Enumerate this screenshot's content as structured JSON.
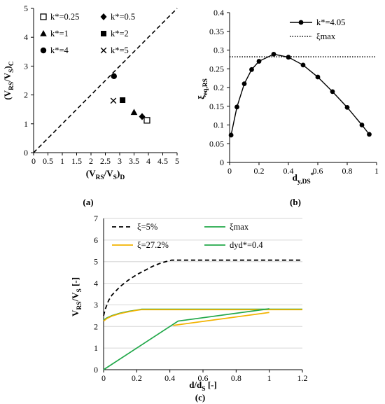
{
  "chart_data": [
    {
      "id": "a",
      "type": "scatter",
      "panel_label": "(a)",
      "xlabel": "(V_RS/V_S)_D",
      "ylabel": "(V_RS/V_S)_C",
      "xlim": [
        0,
        5
      ],
      "ylim": [
        0,
        5
      ],
      "x_ticks": [
        "0",
        "0.5",
        "1",
        "1.5",
        "2",
        "2.5",
        "3",
        "3.5",
        "4",
        "4.5",
        "5"
      ],
      "y_ticks": [
        "0",
        "1",
        "2",
        "3",
        "4",
        "5"
      ],
      "grid": false,
      "reference_line": {
        "style": "dashed",
        "x": [
          0,
          5
        ],
        "y": [
          0,
          5
        ]
      },
      "legend_position": "top-left",
      "series": [
        {
          "name": "k*=0.25",
          "marker": "open-square",
          "points": [
            [
              3.95,
              1.12
            ]
          ]
        },
        {
          "name": "k*=0.5",
          "marker": "diamond",
          "points": [
            [
              3.78,
              1.25
            ]
          ]
        },
        {
          "name": "k*=1",
          "marker": "triangle",
          "points": [
            [
              3.5,
              1.4
            ]
          ]
        },
        {
          "name": "k*=2",
          "marker": "square",
          "points": [
            [
              3.1,
              1.82
            ]
          ]
        },
        {
          "name": "k*=4",
          "marker": "circle",
          "points": [
            [
              2.8,
              2.65
            ]
          ]
        },
        {
          "name": "k*=5",
          "marker": "cross",
          "points": [
            [
              2.78,
              1.8
            ]
          ]
        }
      ]
    },
    {
      "id": "b",
      "type": "line",
      "panel_label": "(b)",
      "xlabel": "d_y,DS*",
      "ylabel": "ξ_eq,RS",
      "xlim": [
        0,
        1
      ],
      "ylim": [
        0,
        0.4
      ],
      "x_ticks": [
        "0",
        "0.2",
        "0.4",
        "0.6",
        "0.8",
        "1"
      ],
      "y_ticks": [
        "0",
        "0.05",
        "0.1",
        "0.15",
        "0.2",
        "0.25",
        "0.3",
        "0.35",
        "0.4"
      ],
      "grid": false,
      "legend_position": "top-right",
      "series": [
        {
          "name": "k*=4.05",
          "style": "solid-with-circles",
          "x": [
            0.01,
            0.05,
            0.1,
            0.15,
            0.2,
            0.3,
            0.4,
            0.5,
            0.6,
            0.7,
            0.8,
            0.9,
            0.95
          ],
          "y": [
            0.073,
            0.148,
            0.21,
            0.248,
            0.27,
            0.289,
            0.281,
            0.26,
            0.228,
            0.189,
            0.147,
            0.1,
            0.075
          ]
        },
        {
          "name": "ξmax",
          "style": "dotted",
          "x": [
            0,
            1
          ],
          "y": [
            0.282,
            0.282
          ]
        }
      ]
    },
    {
      "id": "c",
      "type": "line",
      "panel_label": "(c)",
      "xlabel": "d/d_S [-]",
      "ylabel": "V_RS/V_S [-]",
      "xlim": [
        0,
        1.2
      ],
      "ylim": [
        0,
        7
      ],
      "x_ticks": [
        "0",
        "0.2",
        "0.4",
        "0.6",
        "0.8",
        "1",
        "1.2"
      ],
      "y_ticks": [
        "0",
        "1",
        "2",
        "3",
        "4",
        "5",
        "6",
        "7"
      ],
      "grid": true,
      "legend_position": "top",
      "series": [
        {
          "name": "ξ=5%",
          "color": "#000000",
          "style": "dashed",
          "x": [
            0,
            0.01,
            0.03,
            0.05,
            0.1,
            0.15,
            0.2,
            0.25,
            0.3,
            0.35,
            0.4,
            0.41,
            1.2
          ],
          "y": [
            2.5,
            2.8,
            3.2,
            3.45,
            3.85,
            4.15,
            4.4,
            4.6,
            4.8,
            4.95,
            5.05,
            5.07,
            5.07
          ]
        },
        {
          "name": "ξmax",
          "color": "#22a84a",
          "style": "solid",
          "x": [
            0,
            0.02,
            0.05,
            0.1,
            0.15,
            0.2,
            0.23,
            1.2
          ],
          "y": [
            2.3,
            2.4,
            2.5,
            2.62,
            2.7,
            2.76,
            2.8,
            2.8
          ]
        },
        {
          "name": "ξ=27.2%",
          "color": "#f2b300",
          "style": "solid",
          "x": [
            0,
            0.02,
            0.05,
            0.1,
            0.15,
            0.2,
            0.23,
            1.2
          ],
          "y": [
            2.25,
            2.37,
            2.48,
            2.6,
            2.68,
            2.75,
            2.78,
            2.78
          ]
        },
        {
          "name": "dyd*=0.4",
          "color": "#22a84a",
          "style": "solid",
          "x": [
            0,
            0.45,
            1
          ],
          "y": [
            0,
            2.25,
            2.82
          ]
        },
        {
          "name": "",
          "color": "#f2b300",
          "style": "solid",
          "x": [
            0.42,
            1
          ],
          "y": [
            2.05,
            2.65
          ]
        }
      ]
    }
  ]
}
